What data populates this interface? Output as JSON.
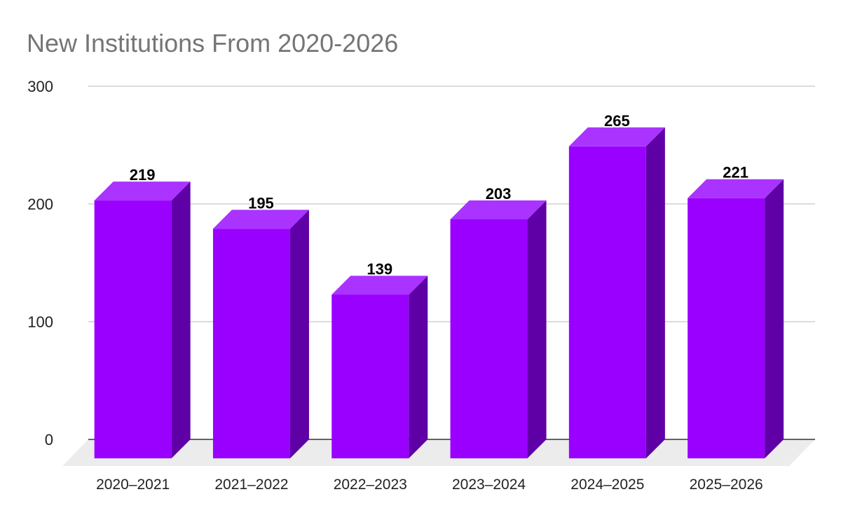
{
  "chart_data": {
    "type": "bar",
    "title": "New Institutions From 2020-2026",
    "xlabel": "",
    "ylabel": "",
    "categories": [
      "2020–2021",
      "2021–2022",
      "2022–2023",
      "2023–2024",
      "2024–2025",
      "2025–2026"
    ],
    "values": [
      219,
      195,
      139,
      203,
      265,
      221
    ],
    "ylim": [
      0,
      300
    ],
    "yticks": [
      "0",
      "100",
      "200",
      "300"
    ],
    "grid": true,
    "legend": "none",
    "style": "3d",
    "colors": {
      "bar_front": "#9900ff",
      "bar_top": "#aa33ff",
      "bar_side": "#5e00a6",
      "floor": "#ececec",
      "grid": "#c8c8c8",
      "axis": "#333333",
      "title": "#757575"
    }
  }
}
